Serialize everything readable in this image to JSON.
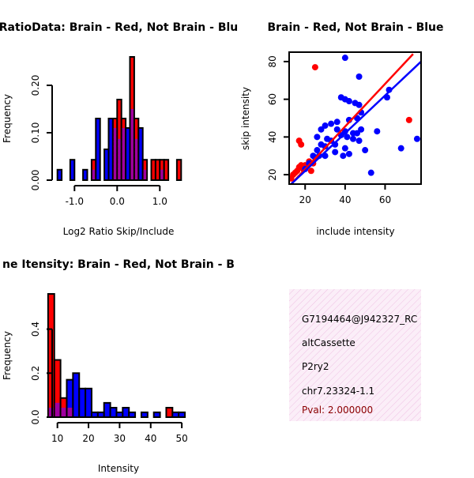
{
  "colors": {
    "red": "#ff0000",
    "blue": "#0000ff",
    "purple": "#a000a0",
    "panel_bg": "#f6dcef",
    "pval": "#8b0000"
  },
  "chart_data": [
    {
      "type": "bar",
      "title": "RatioData: Brain - Red, Not Brain - Blu",
      "xlabel": "Log2 Ratio Skip/Include",
      "ylabel": "Frequency",
      "xlim": [
        -1.45,
        1.55
      ],
      "ylim": [
        0,
        0.26
      ],
      "xticks": [
        -1.0,
        0.0,
        1.0
      ],
      "xtick_labels": [
        "-1.0",
        "0.0",
        "1.0"
      ],
      "yticks": [
        0.0,
        0.1,
        0.2
      ],
      "ytick_labels": [
        "0.00",
        "0.10",
        "0.20"
      ],
      "bin_width": 0.1,
      "series": [
        {
          "name": "Brain",
          "color": "red",
          "bins": [
            [
              -0.6,
              0.043
            ],
            [
              -0.1,
              0.13
            ],
            [
              0.0,
              0.17
            ],
            [
              0.1,
              0.13
            ],
            [
              0.3,
              0.26
            ],
            [
              0.4,
              0.13
            ],
            [
              0.6,
              0.043
            ],
            [
              0.8,
              0.043
            ],
            [
              0.9,
              0.043
            ],
            [
              1.0,
              0.043
            ],
            [
              1.1,
              0.043
            ],
            [
              1.4,
              0.043
            ]
          ]
        },
        {
          "name": "Not Brain",
          "color": "blue",
          "bins": [
            [
              -1.4,
              0.022
            ],
            [
              -1.1,
              0.043
            ],
            [
              -0.8,
              0.022
            ],
            [
              -0.6,
              0.022
            ],
            [
              -0.5,
              0.13
            ],
            [
              -0.3,
              0.065
            ],
            [
              -0.2,
              0.13
            ],
            [
              -0.1,
              0.11
            ],
            [
              0.0,
              0.087
            ],
            [
              0.1,
              0.11
            ],
            [
              0.2,
              0.11
            ],
            [
              0.3,
              0.15
            ],
            [
              0.4,
              0.087
            ],
            [
              0.5,
              0.11
            ],
            [
              0.6,
              0.022
            ],
            [
              1.0,
              0.022
            ]
          ]
        }
      ]
    },
    {
      "type": "scatter",
      "title": "Brain - Red, Not Brain - Blue",
      "xlabel": "include intensity",
      "ylabel": "skip intensity",
      "xlim": [
        12,
        78
      ],
      "ylim": [
        15,
        85
      ],
      "xticks": [
        20,
        40,
        60
      ],
      "yticks": [
        20,
        40,
        60,
        80
      ],
      "series": [
        {
          "name": "Brain",
          "color": "red",
          "points": [
            [
              13,
              18
            ],
            [
              14,
              20
            ],
            [
              15,
              21
            ],
            [
              16,
              22
            ],
            [
              17,
              24
            ],
            [
              18,
              25
            ],
            [
              19,
              23
            ],
            [
              20,
              25
            ],
            [
              22,
              27
            ],
            [
              23,
              22
            ],
            [
              24,
              26
            ],
            [
              17,
              38
            ],
            [
              18,
              36
            ],
            [
              25,
              77
            ],
            [
              72,
              49
            ]
          ],
          "fit": [
            [
              13,
              15
            ],
            [
              74,
              84
            ]
          ]
        },
        {
          "name": "Not Brain",
          "color": "blue",
          "points": [
            [
              40,
              82
            ],
            [
              47,
              72
            ],
            [
              38,
              61
            ],
            [
              40,
              60
            ],
            [
              42,
              59
            ],
            [
              45,
              58
            ],
            [
              47,
              57
            ],
            [
              48,
              53
            ],
            [
              46,
              50
            ],
            [
              42,
              49
            ],
            [
              36,
              48
            ],
            [
              33,
              47
            ],
            [
              30,
              46
            ],
            [
              28,
              44
            ],
            [
              36,
              44
            ],
            [
              40,
              43
            ],
            [
              44,
              42
            ],
            [
              46,
              42
            ],
            [
              48,
              44
            ],
            [
              38,
              41
            ],
            [
              41,
              40
            ],
            [
              44,
              39
            ],
            [
              47,
              38
            ],
            [
              31,
              39
            ],
            [
              33,
              38
            ],
            [
              35,
              36
            ],
            [
              30,
              35
            ],
            [
              28,
              36
            ],
            [
              26,
              33
            ],
            [
              27,
              30
            ],
            [
              25,
              29
            ],
            [
              30,
              30
            ],
            [
              35,
              32
            ],
            [
              40,
              34
            ],
            [
              42,
              31
            ],
            [
              39,
              30
            ],
            [
              50,
              33
            ],
            [
              56,
              43
            ],
            [
              53,
              21
            ],
            [
              61,
              61
            ],
            [
              62,
              65
            ],
            [
              68,
              34
            ],
            [
              76,
              39
            ],
            [
              20,
              23
            ],
            [
              22,
              26
            ],
            [
              24,
              30
            ],
            [
              26,
              40
            ]
          ],
          "fit": [
            [
              13,
              15
            ],
            [
              78,
              80
            ]
          ]
        }
      ]
    },
    {
      "type": "bar",
      "title": "ne Itensity: Brain - Red, Not Brain - B",
      "xlabel": "Intensity",
      "ylabel": "Frequency",
      "xlim": [
        5,
        52
      ],
      "ylim": [
        0,
        0.56
      ],
      "xticks": [
        10,
        20,
        30,
        40,
        50
      ],
      "yticks": [
        0.0,
        0.2,
        0.4
      ],
      "ytick_labels": [
        "0.0",
        "0.2",
        "0.4"
      ],
      "bin_width": 2,
      "series": [
        {
          "name": "Brain",
          "color": "red",
          "bins": [
            [
              7,
              0.56
            ],
            [
              9,
              0.26
            ],
            [
              11,
              0.087
            ],
            [
              13,
              0.043
            ],
            [
              45,
              0.043
            ]
          ]
        },
        {
          "name": "Not Brain",
          "color": "blue",
          "bins": [
            [
              7,
              0.043
            ],
            [
              9,
              0.065
            ],
            [
              11,
              0.043
            ],
            [
              13,
              0.17
            ],
            [
              15,
              0.2
            ],
            [
              17,
              0.13
            ],
            [
              19,
              0.13
            ],
            [
              21,
              0.022
            ],
            [
              23,
              0.022
            ],
            [
              25,
              0.065
            ],
            [
              27,
              0.043
            ],
            [
              29,
              0.022
            ],
            [
              31,
              0.043
            ],
            [
              33,
              0.022
            ],
            [
              37,
              0.022
            ],
            [
              41,
              0.022
            ],
            [
              47,
              0.022
            ],
            [
              49,
              0.022
            ]
          ]
        }
      ]
    }
  ],
  "info_panel": {
    "id": "G7194464@J942327_RC",
    "type": "altCassette",
    "gene": "P2ry2",
    "location": "chr7.23324-1.1",
    "pval": "Pval: 2.000000"
  }
}
